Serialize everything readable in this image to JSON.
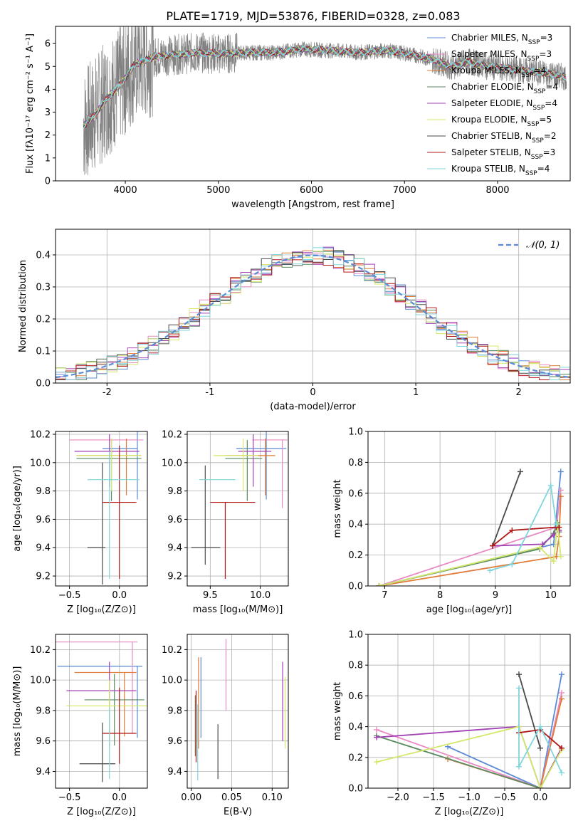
{
  "figure_title": "PLATE=1719, MJD=53876, FIBERID=0328, z=0.083",
  "colors": {
    "c_miles": "#5b8bd6",
    "s_miles": "#e88ac4",
    "k_miles": "#e07b39",
    "c_elodie": "#5a8a5f",
    "s_elodie": "#a341b6",
    "k_elodie": "#d4e86a",
    "c_stelib": "#4a4a4a",
    "s_stelib": "#b01818",
    "k_stelib": "#7fd6dc",
    "data": "#808080",
    "gauss": "#5b8bd6",
    "grid": "#b0b0b0"
  },
  "models": [
    {
      "key": "c_miles",
      "label": "Chabrier MILES, N",
      "sub": "SSP",
      "eq": "=3"
    },
    {
      "key": "s_miles",
      "label": "Salpeter MILES, N",
      "sub": "SSP",
      "eq": "=3"
    },
    {
      "key": "k_miles",
      "label": "Kroupa MILES, N",
      "sub": "SSP",
      "eq": "=4"
    },
    {
      "key": "c_elodie",
      "label": "Chabrier ELODIE, N",
      "sub": "SSP",
      "eq": "=4"
    },
    {
      "key": "s_elodie",
      "label": "Salpeter ELODIE, N",
      "sub": "SSP",
      "eq": "=4"
    },
    {
      "key": "k_elodie",
      "label": "Kroupa ELODIE, N",
      "sub": "SSP",
      "eq": "=5"
    },
    {
      "key": "c_stelib",
      "label": "Chabrier STELIB, N",
      "sub": "SSP",
      "eq": "=2"
    },
    {
      "key": "s_stelib",
      "label": "Salpeter STELIB, N",
      "sub": "SSP",
      "eq": "=3"
    },
    {
      "key": "k_stelib",
      "label": "Kroupa STELIB, N",
      "sub": "SSP",
      "eq": "=4"
    }
  ],
  "chart_data": [
    {
      "id": "spectrum",
      "type": "line",
      "xlabel": "wavelength [Angstrom, rest frame]",
      "ylabel": "Flux [fλ10⁻¹⁷ erg cm⁻² s⁻¹ A⁻¹]",
      "xlim": [
        3250,
        8780
      ],
      "ylim": [
        0,
        6.75
      ],
      "xticks": [
        4000,
        5000,
        6000,
        7000,
        8000
      ],
      "yticks": [
        0,
        1,
        2,
        3,
        4,
        5,
        6
      ],
      "continuum": {
        "x": [
          3550,
          3650,
          3800,
          3900,
          4000,
          4100,
          4300,
          4500,
          4800,
          5000,
          5300,
          5600,
          5900,
          6200,
          6500,
          6800,
          7100,
          7300,
          7500,
          7700,
          7900,
          8100,
          8300,
          8500,
          8780
        ],
        "y": [
          2.4,
          2.8,
          3.6,
          4.0,
          4.5,
          5.1,
          5.4,
          5.5,
          5.6,
          5.55,
          5.6,
          5.6,
          5.75,
          5.7,
          5.6,
          5.7,
          5.5,
          5.3,
          5.0,
          5.2,
          5.0,
          4.9,
          4.8,
          4.7,
          4.5
        ]
      },
      "data_range": [
        3550,
        8740
      ],
      "model_range": [
        3550,
        8740
      ]
    },
    {
      "id": "residual-hist",
      "type": "histogram",
      "xlabel": "(data-model)/error",
      "ylabel": "Normed distribution",
      "xlim": [
        -2.5,
        2.5
      ],
      "ylim": [
        0,
        0.48
      ],
      "xticks": [
        -2,
        -1,
        0,
        1,
        2
      ],
      "yticks": [
        0.0,
        0.1,
        0.2,
        0.3,
        0.4
      ],
      "legend": "𝒩(0, 1)",
      "bin_width": 0.1
    },
    {
      "id": "age-vs-z",
      "type": "errorbar",
      "xlabel": "Z [log₁₀(Z/Z⊙)]",
      "ylabel": "age  [log₁₀(age/yr)]",
      "xlim": [
        -0.64,
        0.28
      ],
      "ylim": [
        9.13,
        10.22
      ],
      "xticks": [
        -0.5,
        0.0
      ],
      "xticklabels": [
        "−0.5",
        "0.0"
      ],
      "yticks": [
        9.2,
        9.4,
        9.6,
        9.8,
        10.0,
        10.2
      ],
      "points": [
        {
          "key": "c_miles",
          "x": 0.18,
          "xe": [
            0.35,
            0.0
          ],
          "y": 10.1,
          "ye": [
            0.36,
            0.12
          ]
        },
        {
          "key": "s_miles",
          "x": 0.12,
          "xe": [
            0.62,
            0.12
          ],
          "y": 10.16,
          "ye": [
            0.0,
            0.0
          ]
        },
        {
          "key": "k_miles",
          "x": 0.07,
          "xe": [
            0.5,
            0.15
          ],
          "y": 10.05,
          "ye": [
            0.28,
            0.12
          ]
        },
        {
          "key": "c_elodie",
          "x": -0.08,
          "xe": [
            0.35,
            0.3
          ],
          "y": 10.03,
          "ye": [
            0.3,
            0.13
          ]
        },
        {
          "key": "s_elodie",
          "x": -0.1,
          "xe": [
            0.35,
            0.3
          ],
          "y": 10.08,
          "ye": [
            0.25,
            0.12
          ]
        },
        {
          "key": "k_elodie",
          "x": -0.08,
          "xe": [
            0.35,
            0.3
          ],
          "y": 10.05,
          "ye": [
            0.25,
            0.12
          ]
        },
        {
          "key": "c_stelib",
          "x": -0.17,
          "xe": [
            0.15,
            0.03
          ],
          "y": 9.4,
          "ye": [
            0.26,
            0.6
          ]
        },
        {
          "key": "s_stelib",
          "x": 0.0,
          "xe": [
            0.17,
            0.17
          ],
          "y": 9.72,
          "ye": [
            0.54,
            0.4
          ]
        },
        {
          "key": "k_stelib",
          "x": -0.1,
          "xe": [
            0.22,
            0.3
          ],
          "y": 9.88,
          "ye": [
            0.7,
            0.2
          ]
        }
      ]
    },
    {
      "id": "age-vs-mass",
      "type": "errorbar",
      "xlabel": "mass [log₁₀(M/M⊙)]",
      "ylabel": "",
      "xlim": [
        9.27,
        10.28
      ],
      "ylim": [
        9.13,
        10.22
      ],
      "xticks": [
        9.5,
        10.0
      ],
      "xticklabels": [
        "9.5",
        "10.0"
      ],
      "yticks": [
        9.2,
        9.4,
        9.6,
        9.8,
        10.0,
        10.2
      ],
      "points": [
        {
          "key": "c_miles",
          "x": 10.06,
          "xe": [
            0.3,
            0.2
          ],
          "y": 10.1,
          "ye": [
            0.36,
            0.12
          ]
        },
        {
          "key": "s_miles",
          "x": 10.22,
          "xe": [
            0.3,
            0.05
          ],
          "y": 10.16,
          "ye": [
            0.48,
            0.0
          ]
        },
        {
          "key": "k_miles",
          "x": 10.05,
          "xe": [
            0.4,
            0.1
          ],
          "y": 10.05,
          "ye": [
            0.28,
            0.12
          ]
        },
        {
          "key": "c_elodie",
          "x": 9.87,
          "xe": [
            0.22,
            0.15
          ],
          "y": 10.03,
          "ye": [
            0.3,
            0.13
          ]
        },
        {
          "key": "s_elodie",
          "x": 9.93,
          "xe": [
            0.15,
            0.18
          ],
          "y": 10.08,
          "ye": [
            0.25,
            0.12
          ]
        },
        {
          "key": "k_elodie",
          "x": 9.83,
          "xe": [
            0.3,
            0.15
          ],
          "y": 10.05,
          "ye": [
            0.25,
            0.12
          ]
        },
        {
          "key": "c_stelib",
          "x": 9.45,
          "xe": [
            0.14,
            0.15
          ],
          "y": 9.4,
          "ye": [
            0.12,
            0.58
          ]
        },
        {
          "key": "s_stelib",
          "x": 9.65,
          "xe": [
            0.15,
            0.3
          ],
          "y": 9.72,
          "ye": [
            0.54,
            0.0
          ]
        },
        {
          "key": "k_stelib",
          "x": 9.55,
          "xe": [
            0.16,
            0.2
          ],
          "y": 9.88,
          "ye": [
            0.0,
            0.0
          ]
        }
      ]
    },
    {
      "id": "weight-vs-age",
      "type": "line",
      "xlabel": "age  [log₁₀(age/yr)]",
      "ylabel": "mass weight",
      "xlim": [
        6.7,
        10.35
      ],
      "ylim": [
        0,
        1
      ],
      "xticks": [
        7,
        8,
        9,
        10
      ],
      "yticks": [
        0.0,
        0.2,
        0.4,
        0.6,
        0.8,
        1.0
      ],
      "series": [
        {
          "key": "c_miles",
          "x": [
            6.9,
            10.05,
            10.18
          ],
          "y": [
            0.0,
            0.27,
            0.74
          ]
        },
        {
          "key": "s_miles",
          "x": [
            6.9,
            10.1,
            10.18
          ],
          "y": [
            0.0,
            0.38,
            0.62
          ]
        },
        {
          "key": "k_miles",
          "x": [
            6.9,
            10.1,
            10.15,
            10.18
          ],
          "y": [
            0.0,
            0.19,
            0.32,
            0.58
          ]
        },
        {
          "key": "c_elodie",
          "x": [
            6.9,
            9.8,
            10.05,
            10.12,
            10.15
          ],
          "y": [
            0.0,
            0.24,
            0.34,
            0.41,
            0.35
          ]
        },
        {
          "key": "s_elodie",
          "x": [
            8.95,
            9.85,
            10.05,
            10.15
          ],
          "y": [
            0.26,
            0.27,
            0.33,
            0.36
          ]
        },
        {
          "key": "k_elodie",
          "x": [
            6.9,
            9.8,
            10.05,
            10.12,
            10.18
          ],
          "y": [
            0.0,
            0.25,
            0.16,
            0.4,
            0.19
          ]
        },
        {
          "key": "c_stelib",
          "x": [
            8.95,
            9.45
          ],
          "y": [
            0.26,
            0.74
          ]
        },
        {
          "key": "s_stelib",
          "x": [
            8.95,
            9.3,
            10.1,
            10.15
          ],
          "y": [
            0.26,
            0.36,
            0.38,
            0.38
          ]
        },
        {
          "key": "k_stelib",
          "x": [
            8.9,
            9.3,
            10.0,
            10.1
          ],
          "y": [
            0.1,
            0.14,
            0.65,
            0.4
          ]
        }
      ]
    },
    {
      "id": "mass-vs-z",
      "type": "errorbar",
      "xlabel": "Z [log₁₀(Z/Z⊙)]",
      "ylabel": "mass [log₁₀(M/M⊙)]",
      "xlim": [
        -0.64,
        0.28
      ],
      "ylim": [
        9.29,
        10.3
      ],
      "xticks": [
        -0.5,
        0.0
      ],
      "xticklabels": [
        "−0.5",
        "0.0"
      ],
      "yticks": [
        9.4,
        9.6,
        9.8,
        10.0,
        10.2
      ],
      "points": [
        {
          "key": "c_miles",
          "x": 0.18,
          "xe": [
            0.8,
            0.05
          ],
          "y": 10.09,
          "ye": [
            0.47,
            0.0
          ]
        },
        {
          "key": "s_miles",
          "x": 0.13,
          "xe": [
            0.78,
            0.05
          ],
          "y": 10.25,
          "ye": [
            0.6,
            0.0
          ]
        },
        {
          "key": "k_miles",
          "x": 0.05,
          "xe": [
            0.5,
            0.12
          ],
          "y": 10.05,
          "ye": [
            0.42,
            0.0
          ]
        },
        {
          "key": "c_elodie",
          "x": -0.05,
          "xe": [
            0.3,
            0.3
          ],
          "y": 9.87,
          "ye": [
            0.3,
            0.17
          ]
        },
        {
          "key": "s_elodie",
          "x": -0.1,
          "xe": [
            0.43,
            0.27
          ],
          "y": 9.93,
          "ye": [
            0.37,
            0.19
          ]
        },
        {
          "key": "k_elodie",
          "x": -0.1,
          "xe": [
            0.43,
            0.4
          ],
          "y": 9.83,
          "ye": [
            0.27,
            0.17
          ]
        },
        {
          "key": "c_stelib",
          "x": -0.17,
          "xe": [
            0.23,
            0.13
          ],
          "y": 9.45,
          "ye": [
            0.12,
            0.27
          ]
        },
        {
          "key": "s_stelib",
          "x": 0.0,
          "xe": [
            0.17,
            0.17
          ],
          "y": 9.65,
          "ye": [
            0.2,
            0.3
          ]
        },
        {
          "key": "k_stelib",
          "x": -0.1,
          "xe": [
            0.0,
            0.0
          ],
          "y": 9.55,
          "ye": [
            0.2,
            0.27
          ]
        }
      ]
    },
    {
      "id": "mass-vs-ebv",
      "type": "errorbar",
      "xlabel": "E(B-V)",
      "ylabel": "",
      "xlim": [
        -0.005,
        0.12
      ],
      "ylim": [
        9.29,
        10.3
      ],
      "xticks": [
        0.0,
        0.05,
        0.1
      ],
      "xticklabels": [
        "0.00",
        "0.05",
        "0.10"
      ],
      "yticks": [
        9.4,
        9.6,
        9.8,
        10.0,
        10.2
      ],
      "points": [
        {
          "key": "c_miles",
          "x": 0.012,
          "xe": [
            0,
            0
          ],
          "y": 9.85,
          "ye": [
            0.23,
            0.3
          ]
        },
        {
          "key": "s_miles",
          "x": 0.043,
          "xe": [
            0,
            0
          ],
          "y": 10.0,
          "ye": [
            0.2,
            0.27
          ]
        },
        {
          "key": "k_miles",
          "x": 0.009,
          "xe": [
            0,
            0
          ],
          "y": 9.85,
          "ye": [
            0.3,
            0.3
          ]
        },
        {
          "key": "c_elodie",
          "x": 0.005,
          "xe": [
            0,
            0
          ],
          "y": 9.7,
          "ye": [
            0.2,
            0.2
          ]
        },
        {
          "key": "s_elodie",
          "x": 0.113,
          "xe": [
            0,
            0
          ],
          "y": 9.85,
          "ye": [
            0.25,
            0.27
          ]
        },
        {
          "key": "k_elodie",
          "x": 0.116,
          "xe": [
            0,
            0
          ],
          "y": 9.8,
          "ye": [
            0.25,
            0.22
          ]
        },
        {
          "key": "c_stelib",
          "x": 0.033,
          "xe": [
            0,
            0
          ],
          "y": 9.55,
          "ye": [
            0.2,
            0.16
          ]
        },
        {
          "key": "s_stelib",
          "x": 0.006,
          "xe": [
            0,
            0
          ],
          "y": 9.7,
          "ye": [
            0.24,
            0.23
          ]
        },
        {
          "key": "k_stelib",
          "x": 0.008,
          "xe": [
            0,
            0
          ],
          "y": 9.6,
          "ye": [
            0.26,
            0.24
          ]
        }
      ]
    },
    {
      "id": "weight-vs-z",
      "type": "line",
      "xlabel": "Z [log₁₀(Z/Z⊙)]",
      "ylabel": "mass weight",
      "xlim": [
        -2.42,
        0.42
      ],
      "ylim": [
        0,
        1
      ],
      "xticks": [
        -2.0,
        -1.5,
        -1.0,
        -0.5,
        0.0
      ],
      "xticklabels": [
        "−2.0",
        "−1.5",
        "−1.0",
        "−0.5",
        "0.0"
      ],
      "yticks": [
        0.0,
        0.2,
        0.4,
        0.6,
        0.8,
        1.0
      ],
      "series": [
        {
          "key": "c_miles",
          "x": [
            -1.3,
            0.0,
            0.3
          ],
          "y": [
            0.27,
            0.0,
            0.74
          ]
        },
        {
          "key": "s_miles",
          "x": [
            -2.3,
            0.0,
            0.3
          ],
          "y": [
            0.38,
            0.0,
            0.62
          ]
        },
        {
          "key": "k_miles",
          "x": [
            -1.3,
            0.0,
            0.3
          ],
          "y": [
            0.19,
            0.0,
            0.58
          ]
        },
        {
          "key": "c_elodie",
          "x": [
            -2.3,
            0.0,
            0.3
          ],
          "y": [
            0.34,
            0.0,
            0.26
          ]
        },
        {
          "key": "s_elodie",
          "x": [
            -2.3,
            -0.3,
            0.0,
            0.3
          ],
          "y": [
            0.33,
            0.4,
            0.0,
            0.26
          ]
        },
        {
          "key": "k_elodie",
          "x": [
            -2.3,
            -0.3,
            0.0,
            0.3
          ],
          "y": [
            0.17,
            0.4,
            0.0,
            0.25
          ]
        },
        {
          "key": "c_stelib",
          "x": [
            -0.3,
            0.0
          ],
          "y": [
            0.74,
            0.26
          ]
        },
        {
          "key": "s_stelib",
          "x": [
            -0.3,
            0.0,
            0.3
          ],
          "y": [
            0.36,
            0.38,
            0.26
          ]
        },
        {
          "key": "k_stelib",
          "x": [
            -0.3,
            -0.3,
            0.0,
            0.3
          ],
          "y": [
            0.65,
            0.14,
            0.4,
            0.1
          ]
        }
      ]
    }
  ]
}
